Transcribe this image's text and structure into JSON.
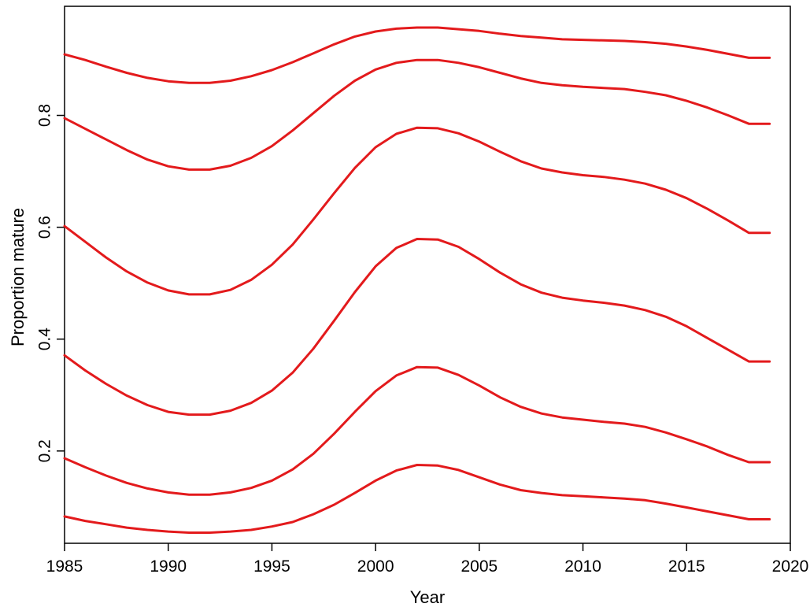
{
  "chart_data": {
    "type": "line",
    "title": "",
    "xlabel": "Year",
    "ylabel": "Proportion mature",
    "xlim": [
      1985,
      2020
    ],
    "ylim": [
      0.035,
      0.995
    ],
    "xticks": [
      1985,
      1990,
      1995,
      2000,
      2005,
      2010,
      2015,
      2020
    ],
    "yticks": [
      0.2,
      0.4,
      0.6,
      0.8
    ],
    "grid": false,
    "legend": "none",
    "line_color": "#e31a1c",
    "x": [
      1985,
      1986,
      1987,
      1988,
      1989,
      1990,
      1991,
      1992,
      1993,
      1994,
      1995,
      1996,
      1997,
      1998,
      1999,
      2000,
      2001,
      2002,
      2003,
      2004,
      2005,
      2006,
      2007,
      2008,
      2009,
      2010,
      2011,
      2012,
      2013,
      2014,
      2015,
      2016,
      2017,
      2018,
      2019
    ],
    "series": [
      {
        "values": [
          0.909,
          0.899,
          0.887,
          0.876,
          0.867,
          0.861,
          0.858,
          0.858,
          0.862,
          0.87,
          0.881,
          0.895,
          0.911,
          0.927,
          0.941,
          0.95,
          0.955,
          0.957,
          0.957,
          0.954,
          0.951,
          0.946,
          0.942,
          0.939,
          0.936,
          0.935,
          0.934,
          0.933,
          0.931,
          0.928,
          0.923,
          0.917,
          0.91,
          0.903,
          0.903
        ]
      },
      {
        "values": [
          0.795,
          0.776,
          0.757,
          0.738,
          0.721,
          0.709,
          0.703,
          0.703,
          0.71,
          0.724,
          0.745,
          0.773,
          0.804,
          0.835,
          0.862,
          0.882,
          0.894,
          0.899,
          0.899,
          0.894,
          0.886,
          0.876,
          0.866,
          0.858,
          0.854,
          0.851,
          0.849,
          0.847,
          0.842,
          0.836,
          0.826,
          0.814,
          0.8,
          0.785,
          0.785
        ]
      },
      {
        "values": [
          0.602,
          0.574,
          0.546,
          0.521,
          0.501,
          0.487,
          0.48,
          0.48,
          0.488,
          0.506,
          0.533,
          0.569,
          0.614,
          0.661,
          0.706,
          0.743,
          0.767,
          0.778,
          0.777,
          0.768,
          0.753,
          0.735,
          0.718,
          0.705,
          0.698,
          0.693,
          0.69,
          0.685,
          0.678,
          0.667,
          0.652,
          0.633,
          0.612,
          0.59,
          0.59
        ]
      },
      {
        "values": [
          0.371,
          0.344,
          0.32,
          0.299,
          0.282,
          0.27,
          0.265,
          0.265,
          0.272,
          0.286,
          0.308,
          0.34,
          0.383,
          0.433,
          0.484,
          0.53,
          0.563,
          0.579,
          0.578,
          0.565,
          0.543,
          0.519,
          0.498,
          0.483,
          0.474,
          0.469,
          0.465,
          0.46,
          0.452,
          0.44,
          0.423,
          0.402,
          0.381,
          0.36,
          0.36
        ]
      },
      {
        "values": [
          0.187,
          0.171,
          0.156,
          0.143,
          0.133,
          0.126,
          0.122,
          0.122,
          0.126,
          0.134,
          0.147,
          0.167,
          0.195,
          0.231,
          0.27,
          0.307,
          0.335,
          0.35,
          0.349,
          0.336,
          0.317,
          0.296,
          0.279,
          0.267,
          0.26,
          0.256,
          0.252,
          0.249,
          0.243,
          0.233,
          0.221,
          0.208,
          0.193,
          0.18,
          0.18
        ]
      },
      {
        "values": [
          0.083,
          0.075,
          0.069,
          0.063,
          0.059,
          0.056,
          0.054,
          0.054,
          0.056,
          0.059,
          0.065,
          0.073,
          0.087,
          0.104,
          0.125,
          0.147,
          0.165,
          0.175,
          0.174,
          0.166,
          0.153,
          0.14,
          0.13,
          0.125,
          0.121,
          0.119,
          0.117,
          0.115,
          0.112,
          0.106,
          0.099,
          0.092,
          0.085,
          0.078,
          0.078
        ]
      }
    ]
  }
}
